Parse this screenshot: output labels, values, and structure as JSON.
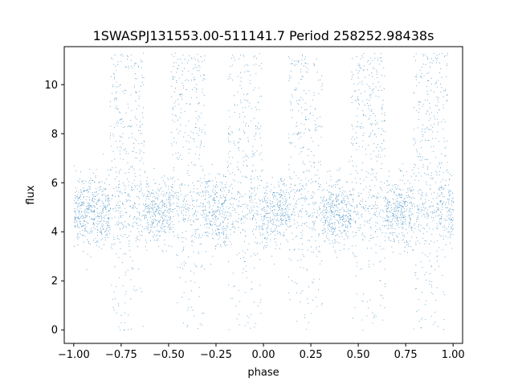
{
  "chart_data": {
    "type": "scatter",
    "title": "1SWASPJ131553.00-511141.7 Period 258252.98438s",
    "xlabel": "phase",
    "ylabel": "flux",
    "xlim": [
      -1.05,
      1.05
    ],
    "ylim": [
      -0.55,
      11.55
    ],
    "xticks": [
      -1.0,
      -0.75,
      -0.5,
      -0.25,
      0.0,
      0.25,
      0.5,
      0.75,
      1.0
    ],
    "xtick_labels": [
      "−1.00",
      "−0.75",
      "−0.50",
      "−0.25",
      "0.00",
      "0.25",
      "0.50",
      "0.75",
      "1.00"
    ],
    "yticks": [
      0,
      2,
      4,
      6,
      8,
      10
    ],
    "ytick_labels": [
      "0",
      "2",
      "4",
      "6",
      "8",
      "10"
    ],
    "grid": false,
    "legend": "none",
    "marker_color": "#1f77b4",
    "series": [
      {
        "phase_range": [
          -1.0,
          1.0
        ],
        "baseline_flux": 4.8,
        "baseline_scatter": 0.7,
        "flare_centers_phase": [
          -0.72,
          -0.4,
          -0.1,
          0.22,
          0.55,
          0.88
        ],
        "flare_halfwidth_phase": 0.09,
        "flare_flux_range": [
          4.5,
          11.3
        ],
        "dip_flux_min": 0.0,
        "approx_point_count": 60000
      }
    ]
  }
}
